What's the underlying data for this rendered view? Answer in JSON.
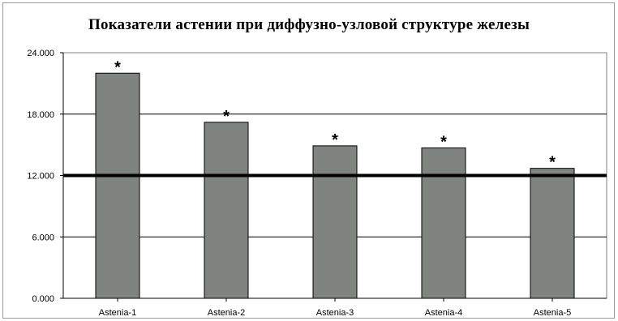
{
  "chart_data": {
    "type": "bar",
    "title": "Показатели астении при диффузно-узловой структуре железы",
    "categories": [
      "Astenia-1",
      "Astenia-2",
      "Astenia-3",
      "Astenia-4",
      "Astenia-5"
    ],
    "values": [
      22.0,
      17.2,
      14.9,
      14.7,
      12.7
    ],
    "bar_annotations": [
      "*",
      "*",
      "*",
      "*",
      "*"
    ],
    "ylim": [
      0,
      24
    ],
    "yticks": [
      0,
      6,
      12,
      18,
      24
    ],
    "ytick_labels": [
      "0.000",
      "6.000",
      "12.000",
      "18.000",
      "24.000"
    ],
    "reference_line": 12,
    "grid": true,
    "xlabel": "",
    "ylabel": "",
    "colors": {
      "bar": "#7f8481",
      "bar_edge": "#000000",
      "reference_line": "#000000",
      "grid": "#000000"
    }
  }
}
